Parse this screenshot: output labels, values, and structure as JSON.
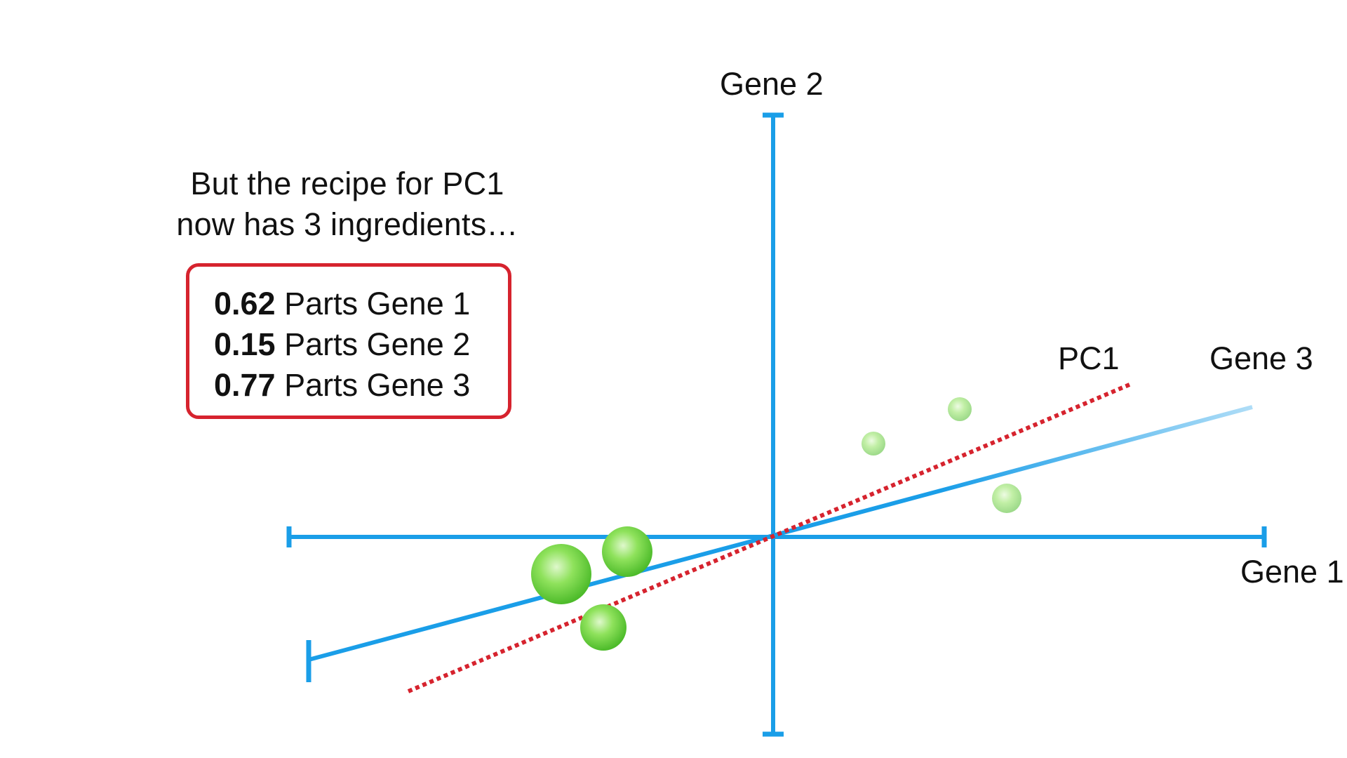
{
  "caption": {
    "line1": "But the recipe for PC1",
    "line2": "now has 3 ingredients…"
  },
  "recipe": [
    {
      "amount": "0.62",
      "text": "Parts Gene 1"
    },
    {
      "amount": "0.15",
      "text": "Parts Gene 2"
    },
    {
      "amount": "0.77",
      "text": "Parts Gene 3"
    }
  ],
  "axes": {
    "gene1": "Gene 1",
    "gene2": "Gene 2",
    "gene3": "Gene 3",
    "pc1": "PC1"
  },
  "colors": {
    "axis": "#1a9ee8",
    "pc1": "#d6232e",
    "point": "#7ddc4e",
    "box_border": "#d6232e"
  }
}
